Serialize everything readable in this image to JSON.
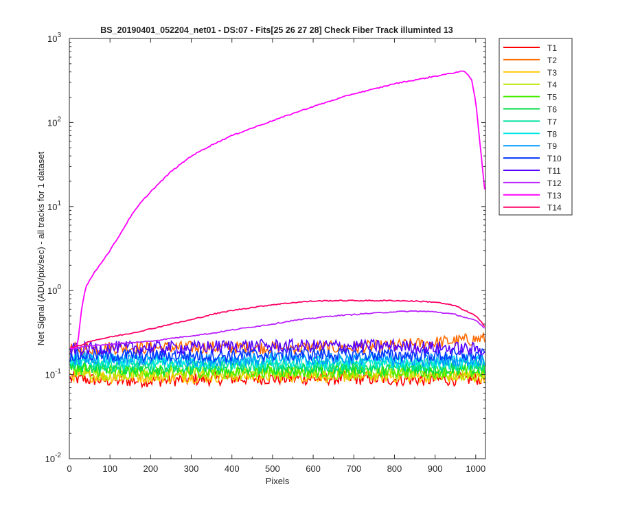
{
  "chart_data": {
    "type": "line",
    "title": "BS_20190401_052204_net01 - DS:07 - Fits[25  26  27  28]   Check Fiber     Track illuminted 13",
    "xlabel": "Pixels",
    "ylabel": "Net Signal (ADU/pix/sec) - all tracks for 1 dataset",
    "xlim": [
      0,
      1024
    ],
    "ylim": [
      0.01,
      1000
    ],
    "yscale": "log",
    "x_ticks": [
      0,
      100,
      200,
      300,
      400,
      500,
      600,
      700,
      800,
      900,
      1000
    ],
    "y_ticks": [
      {
        "base": "10",
        "exp": "-2"
      },
      {
        "base": "10",
        "exp": "-1"
      },
      {
        "base": "10",
        "exp": "0"
      },
      {
        "base": "10",
        "exp": "1"
      },
      {
        "base": "10",
        "exp": "2"
      },
      {
        "base": "10",
        "exp": "3"
      }
    ],
    "grid": false,
    "legend_position": "outside-right",
    "series": [
      {
        "name": "T1",
        "color": "#ff0000",
        "x": [
          0,
          100,
          200,
          300,
          400,
          500,
          600,
          700,
          800,
          900,
          1024
        ],
        "y": [
          0.09,
          0.085,
          0.085,
          0.088,
          0.09,
          0.09,
          0.09,
          0.09,
          0.088,
          0.087,
          0.09
        ]
      },
      {
        "name": "T2",
        "color": "#ff6a00",
        "x": [
          0,
          100,
          200,
          300,
          400,
          500,
          600,
          700,
          800,
          900,
          1024
        ],
        "y": [
          0.2,
          0.21,
          0.21,
          0.21,
          0.21,
          0.21,
          0.21,
          0.21,
          0.22,
          0.24,
          0.27
        ]
      },
      {
        "name": "T3",
        "color": "#ffc800",
        "x": [
          0,
          100,
          200,
          300,
          400,
          500,
          600,
          700,
          800,
          900,
          1024
        ],
        "y": [
          0.1,
          0.095,
          0.095,
          0.095,
          0.097,
          0.097,
          0.097,
          0.097,
          0.096,
          0.095,
          0.095
        ]
      },
      {
        "name": "T4",
        "color": "#b8e600",
        "x": [
          0,
          100,
          200,
          300,
          400,
          500,
          600,
          700,
          800,
          900,
          1024
        ],
        "y": [
          0.11,
          0.1,
          0.1,
          0.105,
          0.105,
          0.105,
          0.105,
          0.105,
          0.105,
          0.1,
          0.1
        ]
      },
      {
        "name": "T5",
        "color": "#44ee00",
        "x": [
          0,
          100,
          200,
          300,
          400,
          500,
          600,
          700,
          800,
          900,
          1024
        ],
        "y": [
          0.12,
          0.11,
          0.11,
          0.11,
          0.11,
          0.11,
          0.11,
          0.11,
          0.11,
          0.11,
          0.11
        ]
      },
      {
        "name": "T6",
        "color": "#00dd44",
        "x": [
          0,
          100,
          200,
          300,
          400,
          500,
          600,
          700,
          800,
          900,
          1024
        ],
        "y": [
          0.13,
          0.12,
          0.12,
          0.12,
          0.12,
          0.12,
          0.12,
          0.12,
          0.12,
          0.12,
          0.12
        ]
      },
      {
        "name": "T7",
        "color": "#00e0a0",
        "x": [
          0,
          100,
          200,
          300,
          400,
          500,
          600,
          700,
          800,
          900,
          1024
        ],
        "y": [
          0.14,
          0.13,
          0.13,
          0.13,
          0.13,
          0.13,
          0.13,
          0.13,
          0.13,
          0.13,
          0.13
        ]
      },
      {
        "name": "T8",
        "color": "#00e8e8",
        "x": [
          0,
          100,
          200,
          300,
          400,
          500,
          600,
          700,
          800,
          900,
          1024
        ],
        "y": [
          0.15,
          0.14,
          0.14,
          0.14,
          0.14,
          0.14,
          0.14,
          0.14,
          0.14,
          0.14,
          0.14
        ]
      },
      {
        "name": "T9",
        "color": "#0099ff",
        "x": [
          0,
          100,
          200,
          300,
          400,
          500,
          600,
          700,
          800,
          900,
          1024
        ],
        "y": [
          0.16,
          0.15,
          0.15,
          0.15,
          0.15,
          0.155,
          0.155,
          0.155,
          0.15,
          0.15,
          0.15
        ]
      },
      {
        "name": "T10",
        "color": "#0033ff",
        "x": [
          0,
          100,
          200,
          300,
          400,
          500,
          600,
          700,
          800,
          900,
          1024
        ],
        "y": [
          0.17,
          0.17,
          0.17,
          0.17,
          0.17,
          0.175,
          0.175,
          0.175,
          0.17,
          0.17,
          0.17
        ]
      },
      {
        "name": "T11",
        "color": "#5500ff",
        "x": [
          0,
          100,
          200,
          300,
          400,
          500,
          600,
          700,
          800,
          900,
          1024
        ],
        "y": [
          0.2,
          0.21,
          0.21,
          0.21,
          0.22,
          0.22,
          0.22,
          0.22,
          0.22,
          0.21,
          0.2
        ]
      },
      {
        "name": "T12",
        "color": "#bb22ff",
        "x": [
          0,
          25,
          50,
          100,
          150,
          200,
          250,
          300,
          350,
          400,
          450,
          500,
          550,
          600,
          650,
          700,
          750,
          800,
          850,
          900,
          950,
          1000,
          1024
        ],
        "y": [
          0.2,
          0.21,
          0.22,
          0.23,
          0.24,
          0.25,
          0.27,
          0.29,
          0.31,
          0.34,
          0.37,
          0.4,
          0.44,
          0.47,
          0.5,
          0.52,
          0.54,
          0.56,
          0.57,
          0.56,
          0.52,
          0.44,
          0.35
        ]
      },
      {
        "name": "T13",
        "color": "#ff00ff",
        "x": [
          0,
          20,
          30,
          40,
          60,
          80,
          100,
          125,
          150,
          175,
          200,
          250,
          300,
          350,
          400,
          450,
          500,
          550,
          600,
          650,
          700,
          750,
          800,
          850,
          900,
          940,
          960,
          975,
          990,
          1000,
          1010,
          1024
        ],
        "y": [
          0.2,
          0.22,
          0.6,
          1.1,
          1.6,
          2.2,
          3.0,
          4.7,
          7.5,
          11,
          15,
          26,
          40,
          54,
          70,
          86,
          105,
          128,
          155,
          185,
          220,
          250,
          290,
          320,
          355,
          385,
          405,
          400,
          320,
          180,
          60,
          13
        ]
      },
      {
        "name": "T14",
        "color": "#ff0066",
        "x": [
          0,
          25,
          50,
          100,
          150,
          200,
          250,
          300,
          350,
          400,
          450,
          500,
          550,
          600,
          650,
          700,
          750,
          800,
          850,
          900,
          950,
          1000,
          1024
        ],
        "y": [
          0.21,
          0.22,
          0.25,
          0.28,
          0.31,
          0.35,
          0.4,
          0.45,
          0.52,
          0.58,
          0.63,
          0.68,
          0.72,
          0.75,
          0.76,
          0.76,
          0.76,
          0.76,
          0.75,
          0.73,
          0.66,
          0.5,
          0.37
        ]
      }
    ]
  }
}
